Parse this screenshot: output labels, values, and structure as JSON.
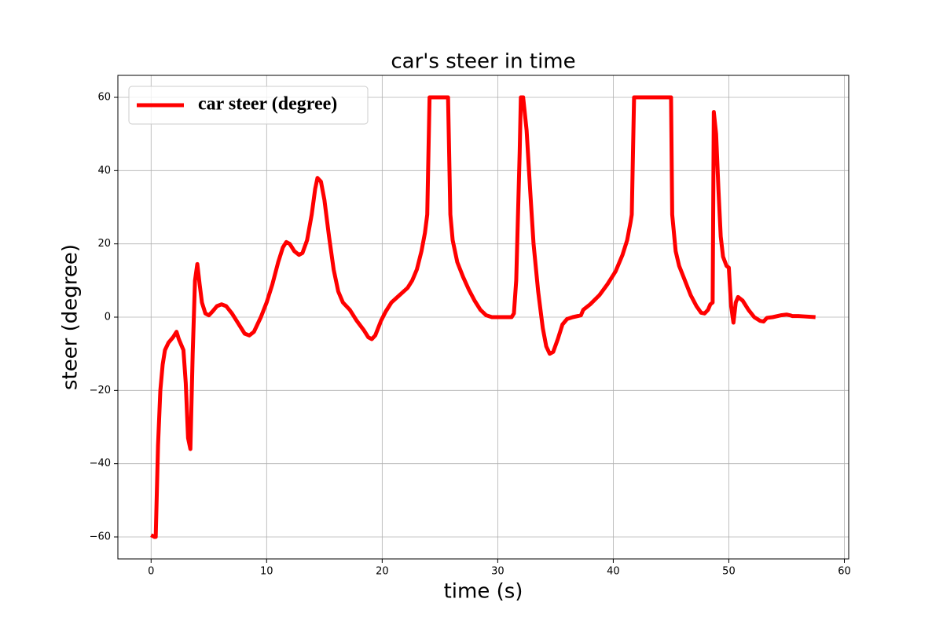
{
  "chart_data": {
    "type": "line",
    "title": "car's steer in time",
    "x_label": "time (s)",
    "y_label": "steer (degree)",
    "x": [
      0,
      0.3,
      0.4,
      0.6,
      0.8,
      1.0,
      1.2,
      1.5,
      1.9,
      2.1,
      2.2,
      2.4,
      2.8,
      3.0,
      3.2,
      3.4,
      3.6,
      3.8,
      4.0,
      4.2,
      4.4,
      4.7,
      5.0,
      5.3,
      5.7,
      6.1,
      6.5,
      7.0,
      7.6,
      8.1,
      8.5,
      8.9,
      9.5,
      10.0,
      10.5,
      11.0,
      11.4,
      11.7,
      12.0,
      12.4,
      12.8,
      13.1,
      13.5,
      13.9,
      14.2,
      14.4,
      14.7,
      15.0,
      15.4,
      15.8,
      16.2,
      16.6,
      17.2,
      17.8,
      18.4,
      18.8,
      19.1,
      19.4,
      19.9,
      20.3,
      20.8,
      21.5,
      22.2,
      22.6,
      23.0,
      23.4,
      23.7,
      23.9,
      24.1,
      25.7,
      25.9,
      26.1,
      26.5,
      27.0,
      27.5,
      28.0,
      28.5,
      29.0,
      29.5,
      30.5,
      31.2,
      31.4,
      31.6,
      31.9,
      32.0,
      32.2,
      32.5,
      32.8,
      33.1,
      33.5,
      33.9,
      34.2,
      34.5,
      34.8,
      35.2,
      35.6,
      36.0,
      36.5,
      37.2,
      37.4,
      38.0,
      38.8,
      39.5,
      40.2,
      40.8,
      41.2,
      41.5,
      41.6,
      41.8,
      45.0,
      45.1,
      45.4,
      45.7,
      46.2,
      46.7,
      47.2,
      47.6,
      47.9,
      48.2,
      48.4,
      48.6,
      48.7,
      48.9,
      49.1,
      49.3,
      49.5,
      49.8,
      50.0,
      50.2,
      50.4,
      50.6,
      50.8,
      51.2,
      51.7,
      52.2,
      52.7,
      53.0,
      53.3,
      53.8,
      54.5,
      55.0,
      55.3,
      55.5,
      56.0,
      56.5,
      57.5
    ],
    "series": [
      {
        "name": "car steer (degree)",
        "color": "#ff0000",
        "values": [
          -59.5,
          -60,
          -60,
          -35,
          -20,
          -13,
          -9,
          -7,
          -5.5,
          -4.5,
          -4,
          -6,
          -9,
          -18,
          -33,
          -36,
          -10,
          10,
          14.5,
          9,
          4,
          1,
          0.5,
          1.5,
          3,
          3.5,
          3,
          1,
          -2,
          -4.5,
          -5,
          -4,
          0,
          4,
          9,
          15,
          19,
          20.5,
          20,
          18,
          17,
          17.5,
          21,
          28,
          35,
          38,
          37,
          32,
          22,
          13,
          7,
          4,
          2,
          -1,
          -3.5,
          -5.5,
          -6,
          -5,
          -1,
          1.5,
          4,
          6,
          8,
          10,
          13,
          18,
          23,
          28,
          60,
          60,
          28,
          21,
          15,
          11,
          7.5,
          4.5,
          2,
          0.5,
          0,
          0,
          0,
          1,
          10,
          45,
          60,
          60,
          51,
          35,
          20,
          7,
          -3,
          -8,
          -10,
          -9.5,
          -6,
          -2,
          -0.5,
          0,
          0.5,
          2,
          3.5,
          6,
          9,
          12.5,
          17,
          21,
          26,
          28,
          60,
          60,
          28,
          18,
          14,
          10,
          6,
          3,
          1.2,
          1,
          2,
          3.5,
          4,
          56,
          50,
          35,
          22,
          16.5,
          14,
          13.5,
          3,
          -1.5,
          4,
          5.5,
          4.5,
          2,
          0,
          -1,
          -1.2,
          -0.2,
          0,
          0.5,
          0.7,
          0.5,
          0.3,
          0.3,
          0.2,
          0
        ]
      }
    ],
    "xlim": [
      -2.875,
      60.375
    ],
    "ylim": [
      -66,
      66
    ],
    "xticks": [
      0,
      10,
      20,
      30,
      40,
      50,
      60
    ],
    "yticks": [
      {
        "value": -60,
        "label": "−60"
      },
      {
        "value": -40,
        "label": "−40"
      },
      {
        "value": -20,
        "label": "−20"
      },
      0,
      20,
      40,
      60
    ],
    "grid": true,
    "legend": "upper left"
  }
}
